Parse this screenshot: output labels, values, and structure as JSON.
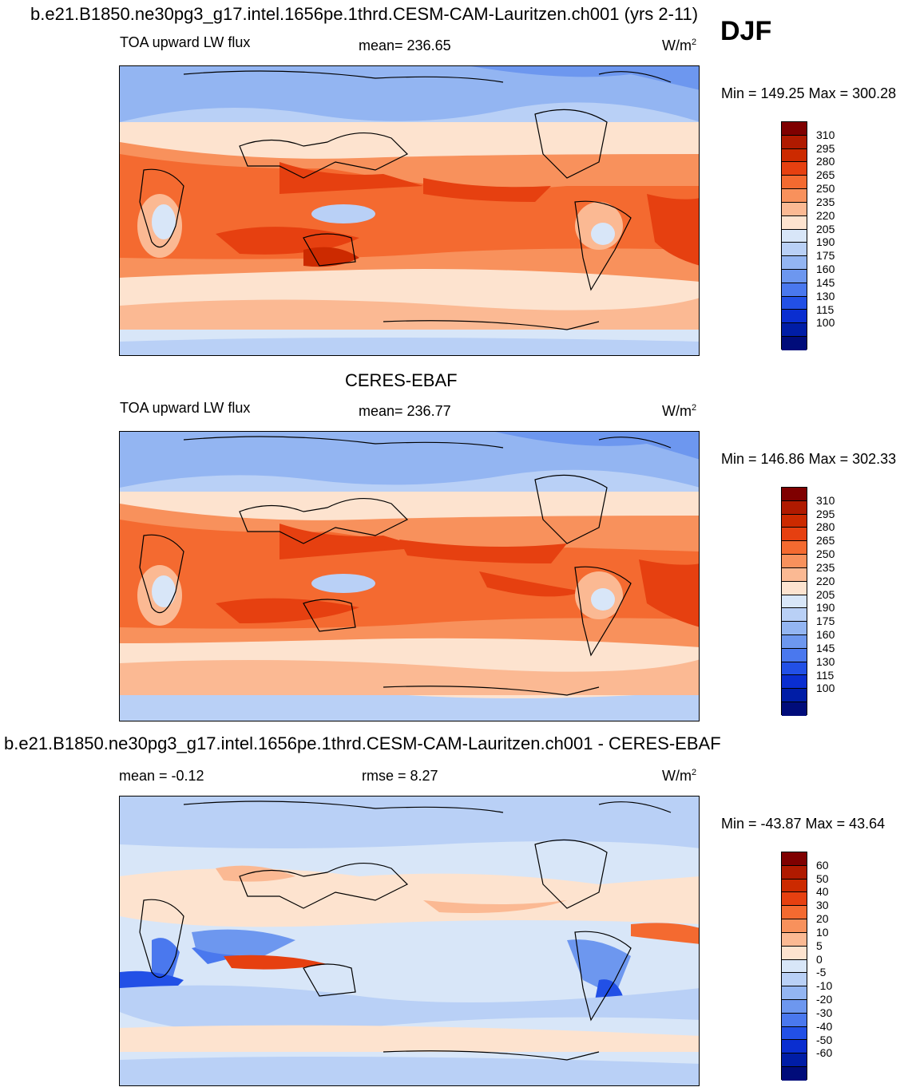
{
  "case_title": "b.e21.B1850.ne30pg3_g17.intel.1656pe.1thrd.CESM-CAM-Lauritzen.ch001 (yrs 2-11)",
  "season": "DJF",
  "panels": [
    {
      "name": "model",
      "title": "",
      "left_label": "TOA upward LW flux",
      "center_label": "mean= 236.65",
      "units": "W/m",
      "units_sup": "2",
      "minmax": "Min = 149.25 Max = 300.28"
    },
    {
      "name": "obs",
      "title": "CERES-EBAF",
      "left_label": "TOA upward LW flux",
      "center_label": "mean= 236.77",
      "units": "W/m",
      "units_sup": "2",
      "minmax": "Min = 146.86 Max = 302.33"
    },
    {
      "name": "diff",
      "title": "b.e21.B1850.ne30pg3_g17.intel.1656pe.1thrd.CESM-CAM-Lauritzen.ch001 - CERES-EBAF",
      "left_label": "mean =  -0.12",
      "center_label": "rmse =   8.27",
      "units": "W/m",
      "units_sup": "2",
      "minmax": "Min = -43.87 Max =  43.64"
    }
  ],
  "colorbars": {
    "abs": {
      "labels": [
        "310",
        "295",
        "280",
        "265",
        "250",
        "235",
        "220",
        "205",
        "190",
        "175",
        "160",
        "145",
        "130",
        "115",
        "100"
      ],
      "colors": [
        "#7f0000",
        "#b01a00",
        "#cc2a00",
        "#e64010",
        "#f46a30",
        "#f8915c",
        "#fbb993",
        "#fde3cf",
        "#d8e6f8",
        "#b9d0f6",
        "#93b5f2",
        "#6d97ef",
        "#4a78ee",
        "#2250e6",
        "#0a2ed0",
        "#001da6",
        "#000c7a"
      ]
    },
    "diff": {
      "labels": [
        "60",
        "50",
        "40",
        "30",
        "20",
        "10",
        "5",
        "0",
        "-5",
        "-10",
        "-20",
        "-30",
        "-40",
        "-50",
        "-60"
      ],
      "colors": [
        "#7f0000",
        "#b01a00",
        "#cc2a00",
        "#e64010",
        "#f46a30",
        "#f8915c",
        "#fbb993",
        "#fde3cf",
        "#d8e6f8",
        "#b9d0f6",
        "#93b5f2",
        "#6d97ef",
        "#4a78ee",
        "#2250e6",
        "#0a2ed0",
        "#001da6",
        "#000c7a"
      ]
    }
  }
}
